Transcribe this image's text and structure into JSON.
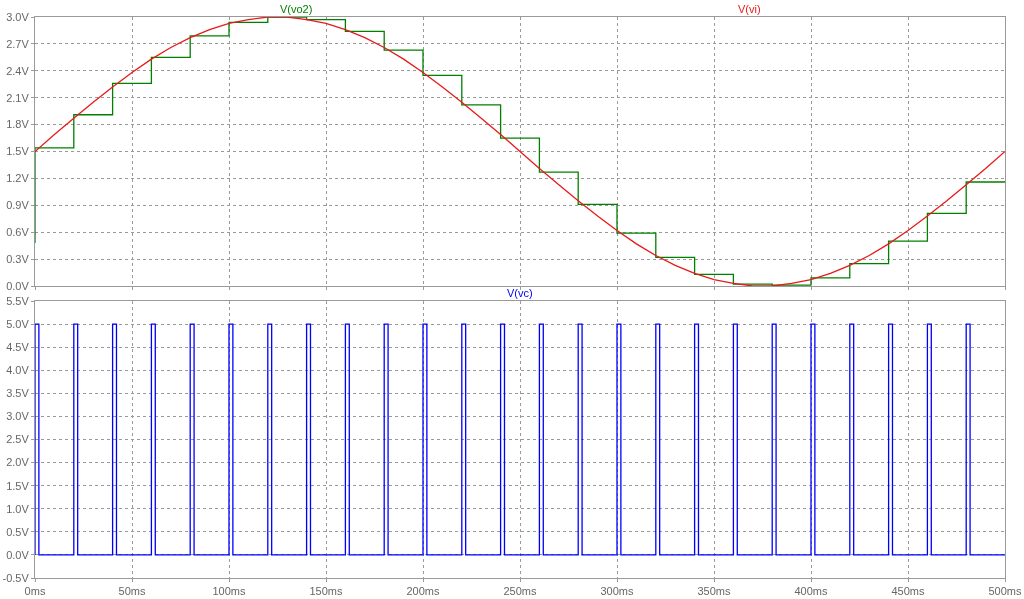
{
  "chart_data": [
    {
      "type": "line",
      "legend": "top",
      "grid": true,
      "tick_labels": "y",
      "xlim": [
        0,
        500
      ],
      "xticks": [
        {
          "value": 0,
          "label": null
        },
        {
          "value": 50,
          "label": null
        },
        {
          "value": 100,
          "label": null
        },
        {
          "value": 150,
          "label": null
        },
        {
          "value": 200,
          "label": null
        },
        {
          "value": 250,
          "label": null
        },
        {
          "value": 300,
          "label": null
        },
        {
          "value": 350,
          "label": null
        },
        {
          "value": 400,
          "label": null
        },
        {
          "value": 450,
          "label": null
        },
        {
          "value": 500,
          "label": null
        }
      ],
      "ylim": [
        0,
        3.0
      ],
      "yticks": [
        {
          "value": 0,
          "label": "0.0V"
        },
        {
          "value": 0.3,
          "label": "0.3V"
        },
        {
          "value": 0.6,
          "label": "0.6V"
        },
        {
          "value": 0.9,
          "label": "0.9V"
        },
        {
          "value": 1.2,
          "label": "1.2V"
        },
        {
          "value": 1.5,
          "label": "1.5V"
        },
        {
          "value": 1.8,
          "label": "1.8V"
        },
        {
          "value": 2.1,
          "label": "2.1V"
        },
        {
          "value": 2.4,
          "label": "2.4V"
        },
        {
          "value": 2.7,
          "label": "2.7V"
        },
        {
          "value": 3.0,
          "label": "3.0V"
        }
      ],
      "series": [
        {
          "name": "V(vo2)",
          "color": "#008000",
          "x": [
            0,
            0,
            20,
            20,
            40,
            40,
            60,
            60,
            80,
            80,
            100,
            100,
            120,
            120,
            140,
            140,
            160,
            160,
            180,
            180,
            200,
            200,
            220,
            220,
            240,
            240,
            260,
            260,
            280,
            280,
            300,
            300,
            320,
            320,
            340,
            340,
            360,
            360,
            380,
            380,
            400,
            400,
            420,
            420,
            440,
            440,
            460,
            460,
            480,
            480,
            500
          ],
          "values": [
            0.48,
            1.54,
            1.54,
            1.91,
            1.91,
            2.26,
            2.26,
            2.55,
            2.55,
            2.79,
            2.79,
            2.94,
            2.94,
            3.0,
            3.0,
            2.97,
            2.97,
            2.84,
            2.84,
            2.63,
            2.63,
            2.35,
            2.35,
            2.02,
            2.02,
            1.65,
            1.65,
            1.27,
            1.27,
            0.91,
            0.91,
            0.59,
            0.59,
            0.32,
            0.32,
            0.13,
            0.13,
            0.02,
            0.02,
            0.01,
            0.01,
            0.09,
            0.09,
            0.25,
            0.25,
            0.5,
            0.5,
            0.81,
            0.81,
            1.16,
            1.16
          ]
        },
        {
          "name": "V(vi)",
          "color": "#e8191b",
          "x": [
            0,
            10,
            20,
            30,
            40,
            50,
            60,
            70,
            80,
            90,
            100,
            110,
            120,
            130,
            140,
            150,
            160,
            170,
            180,
            190,
            200,
            210,
            220,
            230,
            240,
            250,
            260,
            270,
            280,
            290,
            300,
            310,
            320,
            330,
            340,
            350,
            360,
            370,
            380,
            390,
            400,
            410,
            420,
            430,
            440,
            450,
            460,
            470,
            480,
            490,
            500
          ],
          "values": [
            1.5,
            1.69,
            1.87,
            2.05,
            2.22,
            2.38,
            2.53,
            2.66,
            2.77,
            2.86,
            2.93,
            2.97,
            3.0,
            3.0,
            2.97,
            2.93,
            2.86,
            2.77,
            2.66,
            2.53,
            2.38,
            2.22,
            2.05,
            1.87,
            1.69,
            1.5,
            1.31,
            1.13,
            0.95,
            0.78,
            0.62,
            0.47,
            0.34,
            0.23,
            0.14,
            0.07,
            0.03,
            0.0,
            0.0,
            0.03,
            0.07,
            0.14,
            0.23,
            0.34,
            0.47,
            0.62,
            0.78,
            0.95,
            1.13,
            1.31,
            1.5
          ]
        }
      ]
    },
    {
      "type": "line",
      "legend": "top",
      "grid": true,
      "xlim": [
        0,
        500
      ],
      "xticks": [
        {
          "value": 0,
          "label": "0ms"
        },
        {
          "value": 50,
          "label": "50ms"
        },
        {
          "value": 100,
          "label": "100ms"
        },
        {
          "value": 150,
          "label": "150ms"
        },
        {
          "value": 200,
          "label": "200ms"
        },
        {
          "value": 250,
          "label": "250ms"
        },
        {
          "value": 300,
          "label": "300ms"
        },
        {
          "value": 350,
          "label": "350ms"
        },
        {
          "value": 400,
          "label": "400ms"
        },
        {
          "value": 450,
          "label": "450ms"
        },
        {
          "value": 500,
          "label": "500ms"
        }
      ],
      "ylim": [
        -0.5,
        5.5
      ],
      "yticks": [
        {
          "value": -0.5,
          "label": "-0.5V"
        },
        {
          "value": 0,
          "label": "0.0V"
        },
        {
          "value": 0.5,
          "label": "0.5V"
        },
        {
          "value": 1.0,
          "label": "1.0V"
        },
        {
          "value": 1.5,
          "label": "1.5V"
        },
        {
          "value": 2.0,
          "label": "2.0V"
        },
        {
          "value": 2.5,
          "label": "2.5V"
        },
        {
          "value": 3.0,
          "label": "3.0V"
        },
        {
          "value": 3.5,
          "label": "3.5V"
        },
        {
          "value": 4.0,
          "label": "4.0V"
        },
        {
          "value": 4.5,
          "label": "4.5V"
        },
        {
          "value": 5.0,
          "label": "5.0V"
        },
        {
          "value": 5.5,
          "label": "5.5V"
        }
      ],
      "series": [
        {
          "name": "V(vc)",
          "color": "#0000ff",
          "x": [
            0,
            0,
            2,
            2,
            20,
            20,
            22,
            22,
            40,
            40,
            42,
            42,
            60,
            60,
            62,
            62,
            80,
            80,
            82,
            82,
            100,
            100,
            102,
            102,
            120,
            120,
            122,
            122,
            140,
            140,
            142,
            142,
            160,
            160,
            162,
            162,
            180,
            180,
            182,
            182,
            200,
            200,
            202,
            202,
            220,
            220,
            222,
            222,
            240,
            240,
            242,
            242,
            260,
            260,
            262,
            262,
            280,
            280,
            282,
            282,
            300,
            300,
            302,
            302,
            320,
            320,
            322,
            322,
            340,
            340,
            342,
            342,
            360,
            360,
            362,
            362,
            380,
            380,
            382,
            382,
            400,
            400,
            402,
            402,
            420,
            420,
            422,
            422,
            440,
            440,
            442,
            442,
            460,
            460,
            462,
            462,
            480,
            480,
            482,
            482,
            500
          ],
          "values": [
            0,
            5,
            5,
            0,
            0,
            5,
            5,
            0,
            0,
            5,
            5,
            0,
            0,
            5,
            5,
            0,
            0,
            5,
            5,
            0,
            0,
            5,
            5,
            0,
            0,
            5,
            5,
            0,
            0,
            5,
            5,
            0,
            0,
            5,
            5,
            0,
            0,
            5,
            5,
            0,
            0,
            5,
            5,
            0,
            0,
            5,
            5,
            0,
            0,
            5,
            5,
            0,
            0,
            5,
            5,
            0,
            0,
            5,
            5,
            0,
            0,
            5,
            5,
            0,
            0,
            5,
            5,
            0,
            0,
            5,
            5,
            0,
            0,
            5,
            5,
            0,
            0,
            5,
            5,
            0,
            0,
            5,
            5,
            0,
            0,
            5,
            5,
            0,
            0,
            5,
            5,
            0,
            0,
            5,
            5,
            0,
            0,
            5,
            5,
            0,
            0
          ]
        }
      ]
    }
  ]
}
